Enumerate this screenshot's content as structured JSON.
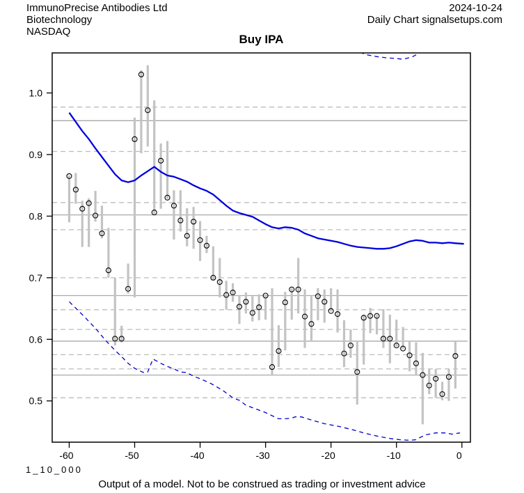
{
  "header": {
    "company": "ImmunoPrecise Antibodies Ltd",
    "sector": "Biotechnology",
    "exchange": "NASDAQ",
    "date": "2024-10-24",
    "source_line": "Daily Chart signalsetups.com"
  },
  "title": "Buy IPA",
  "footer": {
    "model_id": "1_10_000",
    "disclaimer": "Output of a model. Not to be construed as trading or investment advice"
  },
  "chart_data": {
    "type": "bar",
    "style": "daily high-low range bars with open-circle close markers, solid blue MA line and dashed blue upper/lower band lines",
    "title": "Buy IPA",
    "xlabel": "",
    "ylabel": "",
    "x_ticks": [
      -60,
      -50,
      -40,
      -30,
      -20,
      -10,
      0
    ],
    "y_ticks": [
      0.5,
      0.6,
      0.7,
      0.8,
      0.9,
      1.0
    ],
    "xlim": [
      -62.6,
      1.3
    ],
    "ylim": [
      0.433,
      1.065
    ],
    "grid_solid": [
      0.955,
      0.802,
      0.671,
      0.597,
      0.542
    ],
    "grid_dashed": [
      0.977,
      0.905,
      0.822,
      0.778,
      0.7,
      0.648,
      0.616,
      0.575,
      0.552,
      0.505
    ],
    "x_days": [
      -60,
      -59,
      -58,
      -57,
      -56,
      -55,
      -54,
      -53,
      -52,
      -51,
      -50,
      -49,
      -48,
      -47,
      -46,
      -45,
      -44,
      -43,
      -42,
      -41,
      -40,
      -39,
      -38,
      -37,
      -36,
      -35,
      -34,
      -33,
      -32,
      -31,
      -30,
      -29,
      -28,
      -27,
      -26,
      -25,
      -24,
      -23,
      -22,
      -21,
      -20,
      -19,
      -18,
      -17,
      -16,
      -15,
      -14,
      -13,
      -12,
      -11,
      -10,
      -9,
      -8,
      -7,
      -6,
      -5,
      -4,
      -3,
      -2,
      -1
    ],
    "bar_high": [
      0.866,
      0.87,
      0.825,
      0.829,
      0.841,
      0.817,
      0.781,
      0.7,
      0.622,
      0.723,
      0.96,
      1.037,
      1.045,
      0.988,
      0.918,
      0.922,
      0.842,
      0.842,
      0.813,
      0.815,
      0.792,
      0.768,
      0.751,
      0.732,
      0.695,
      0.691,
      0.672,
      0.676,
      0.67,
      0.673,
      0.673,
      0.683,
      0.623,
      0.677,
      0.683,
      0.732,
      0.681,
      0.67,
      0.683,
      0.681,
      0.683,
      0.681,
      0.631,
      0.616,
      0.597,
      0.64,
      0.651,
      0.64,
      0.649,
      0.64,
      0.632,
      0.62,
      0.597,
      0.595,
      0.578,
      0.552,
      0.552,
      0.531,
      0.552,
      0.597
    ],
    "bar_low": [
      0.79,
      0.82,
      0.75,
      0.75,
      0.791,
      0.764,
      0.7,
      0.59,
      0.595,
      0.674,
      0.668,
      0.902,
      0.913,
      0.804,
      0.812,
      0.828,
      0.762,
      0.775,
      0.751,
      0.747,
      0.727,
      0.74,
      0.697,
      0.668,
      0.648,
      0.661,
      0.625,
      0.642,
      0.629,
      0.631,
      0.632,
      0.543,
      0.555,
      0.582,
      0.632,
      0.642,
      0.586,
      0.597,
      0.631,
      0.627,
      0.645,
      0.611,
      0.555,
      0.57,
      0.494,
      0.559,
      0.61,
      0.608,
      0.586,
      0.561,
      0.588,
      0.584,
      0.548,
      0.543,
      0.462,
      0.511,
      0.505,
      0.501,
      0.5,
      0.52
    ],
    "close": [
      0.865,
      0.843,
      0.812,
      0.821,
      0.801,
      0.772,
      0.712,
      0.601,
      0.601,
      0.682,
      0.925,
      1.03,
      0.972,
      0.806,
      0.89,
      0.83,
      0.817,
      0.793,
      0.768,
      0.791,
      0.761,
      0.752,
      0.7,
      0.693,
      0.672,
      0.676,
      0.653,
      0.661,
      0.643,
      0.652,
      0.671,
      0.555,
      0.581,
      0.66,
      0.681,
      0.681,
      0.637,
      0.625,
      0.67,
      0.661,
      0.646,
      0.641,
      0.577,
      0.59,
      0.547,
      0.635,
      0.638,
      0.638,
      0.601,
      0.601,
      0.59,
      0.585,
      0.574,
      0.561,
      0.542,
      0.525,
      0.536,
      0.511,
      0.539,
      0.573
    ],
    "ma_line": [
      [
        -60,
        0.968
      ],
      [
        -59,
        0.953
      ],
      [
        -58,
        0.938
      ],
      [
        -57,
        0.925
      ],
      [
        -56,
        0.91
      ],
      [
        -55,
        0.896
      ],
      [
        -54,
        0.882
      ],
      [
        -53,
        0.868
      ],
      [
        -52,
        0.858
      ],
      [
        -51,
        0.855
      ],
      [
        -50,
        0.858
      ],
      [
        -49,
        0.866
      ],
      [
        -48,
        0.873
      ],
      [
        -47,
        0.88
      ],
      [
        -46,
        0.872
      ],
      [
        -45,
        0.866
      ],
      [
        -44,
        0.864
      ],
      [
        -43,
        0.86
      ],
      [
        -42,
        0.856
      ],
      [
        -41,
        0.85
      ],
      [
        -40,
        0.845
      ],
      [
        -39,
        0.841
      ],
      [
        -38,
        0.835
      ],
      [
        -37,
        0.826
      ],
      [
        -36,
        0.817
      ],
      [
        -35,
        0.809
      ],
      [
        -34,
        0.805
      ],
      [
        -33,
        0.802
      ],
      [
        -32,
        0.799
      ],
      [
        -31,
        0.793
      ],
      [
        -30,
        0.787
      ],
      [
        -29,
        0.782
      ],
      [
        -28,
        0.78
      ],
      [
        -27,
        0.782
      ],
      [
        -26,
        0.781
      ],
      [
        -25,
        0.778
      ],
      [
        -24,
        0.772
      ],
      [
        -23,
        0.768
      ],
      [
        -22,
        0.764
      ],
      [
        -21,
        0.762
      ],
      [
        -20,
        0.76
      ],
      [
        -19,
        0.758
      ],
      [
        -18,
        0.755
      ],
      [
        -17,
        0.752
      ],
      [
        -16,
        0.75
      ],
      [
        -15,
        0.749
      ],
      [
        -14,
        0.748
      ],
      [
        -13,
        0.747
      ],
      [
        -12,
        0.747
      ],
      [
        -11,
        0.748
      ],
      [
        -10,
        0.751
      ],
      [
        -9,
        0.755
      ],
      [
        -8,
        0.759
      ],
      [
        -7,
        0.761
      ],
      [
        -6,
        0.76
      ],
      [
        -5,
        0.757
      ],
      [
        -4,
        0.757
      ],
      [
        -3,
        0.756
      ],
      [
        -2,
        0.757
      ],
      [
        -1,
        0.756
      ],
      [
        0.3,
        0.755
      ]
    ],
    "upper_band": [
      [
        -15.6,
        1.066
      ],
      [
        -14.5,
        1.062
      ],
      [
        -13,
        1.059
      ],
      [
        -11.5,
        1.057
      ],
      [
        -10,
        1.056
      ],
      [
        -9.3,
        1.055
      ],
      [
        -8.5,
        1.056
      ],
      [
        -7.5,
        1.059
      ],
      [
        -7,
        1.062
      ],
      [
        -6.5,
        1.066
      ]
    ],
    "lower_band": [
      [
        -60,
        0.661
      ],
      [
        -58,
        0.64
      ],
      [
        -57,
        0.629
      ],
      [
        -56,
        0.618
      ],
      [
        -54.5,
        0.599
      ],
      [
        -53,
        0.582
      ],
      [
        -52,
        0.572
      ],
      [
        -51,
        0.561
      ],
      [
        -50,
        0.553
      ],
      [
        -49.5,
        0.55
      ],
      [
        -48.6,
        0.546
      ],
      [
        -48,
        0.547
      ],
      [
        -47.2,
        0.568
      ],
      [
        -46.5,
        0.564
      ],
      [
        -46,
        0.561
      ],
      [
        -45,
        0.556
      ],
      [
        -44,
        0.552
      ],
      [
        -43,
        0.547
      ],
      [
        -42,
        0.546
      ],
      [
        -41,
        0.54
      ],
      [
        -40,
        0.536
      ],
      [
        -38.5,
        0.529
      ],
      [
        -37.8,
        0.525
      ],
      [
        -36.4,
        0.516
      ],
      [
        -35,
        0.505
      ],
      [
        -34,
        0.501
      ],
      [
        -33,
        0.493
      ],
      [
        -32,
        0.489
      ],
      [
        -31,
        0.485
      ],
      [
        -30,
        0.481
      ],
      [
        -29,
        0.476
      ],
      [
        -28,
        0.471
      ],
      [
        -27,
        0.471
      ],
      [
        -26,
        0.472
      ],
      [
        -25.5,
        0.474
      ],
      [
        -24.5,
        0.474
      ],
      [
        -23,
        0.469
      ],
      [
        -21,
        0.463
      ],
      [
        -19,
        0.459
      ],
      [
        -17,
        0.454
      ],
      [
        -15,
        0.448
      ],
      [
        -13,
        0.443
      ],
      [
        -11,
        0.439
      ],
      [
        -9.5,
        0.437
      ],
      [
        -8,
        0.436
      ],
      [
        -7,
        0.437
      ],
      [
        -6.5,
        0.44
      ],
      [
        -5.5,
        0.445
      ],
      [
        -4,
        0.448
      ],
      [
        -2.5,
        0.448
      ],
      [
        -1.5,
        0.446
      ],
      [
        -0.3,
        0.448
      ]
    ],
    "legend": "none",
    "grid": "on",
    "colors": {
      "ma_line": "#0000dd",
      "band_line": "#0000cc",
      "range_bar": "#c3c3c3",
      "grid_solid": "#a9a9a9",
      "grid_dashed": "#bcbcbc",
      "axis": "#000000",
      "close_marker": "#000000",
      "background": "#ffffff"
    }
  }
}
